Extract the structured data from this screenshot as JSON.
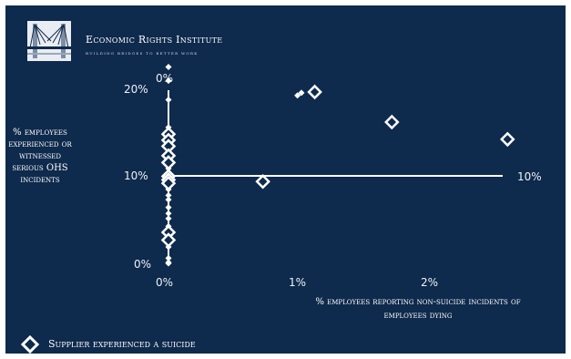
{
  "header": {
    "org_name": "Economic Rights Institute",
    "org_tagline": "Building bridges to better work",
    "logo_icon": "bridge-logo-icon"
  },
  "colors": {
    "background": "#0e2a4c",
    "foreground": "#ffffff"
  },
  "chart_data": {
    "type": "scatter",
    "xlabel": "% employees reporting non-suicide incidents of employees dying",
    "ylabel": "% employees experienced or witnessed serious OHS incidents",
    "xlim": [
      0,
      2.7
    ],
    "ylim": [
      0,
      20
    ],
    "x_ticks": [
      "0%",
      "1%",
      "2%"
    ],
    "y_ticks": [
      "0%",
      "10%",
      "20%"
    ],
    "extra_tick_labels": {
      "top": "0%",
      "right": "10%"
    },
    "grid": false,
    "legend": {
      "position": "bottom-left",
      "entries": [
        {
          "marker": "hollow-diamond",
          "label": "Supplier experienced a suicide"
        }
      ]
    },
    "series": [
      {
        "marker": "small-solid-diamond",
        "points": [
          [
            0,
            22.8
          ],
          [
            0,
            21.2
          ],
          [
            0,
            19.0
          ],
          [
            0,
            15.8
          ],
          [
            0,
            14.6
          ],
          [
            0,
            13.8
          ],
          [
            0,
            13.2
          ],
          [
            0,
            12.4
          ],
          [
            0,
            11.7
          ],
          [
            0,
            11.0
          ],
          [
            0,
            10.5
          ],
          [
            0,
            9.8
          ],
          [
            0,
            9.3
          ],
          [
            0,
            8.6
          ],
          [
            0,
            7.9
          ],
          [
            0,
            7.4
          ],
          [
            0,
            6.5
          ],
          [
            0,
            5.8
          ],
          [
            0,
            5.2
          ],
          [
            0,
            4.3
          ],
          [
            0,
            3.5
          ],
          [
            0,
            2.7
          ],
          [
            0,
            1.9
          ],
          [
            0,
            0.6
          ],
          [
            0,
            0.1
          ],
          [
            0,
            0.0
          ],
          [
            0.97,
            19.5
          ],
          [
            1.0,
            19.8
          ]
        ]
      },
      {
        "marker": "hollow-diamond",
        "points": [
          [
            0,
            15.0
          ],
          [
            0,
            14.3
          ],
          [
            0,
            13.6
          ],
          [
            0,
            12.5
          ],
          [
            0,
            11.7
          ],
          [
            0,
            10.1
          ],
          [
            0,
            9.7
          ],
          [
            0,
            9.3
          ],
          [
            0,
            3.6
          ],
          [
            0,
            2.7
          ],
          [
            0.71,
            9.5
          ],
          [
            1.1,
            19.9
          ],
          [
            1.68,
            16.4
          ],
          [
            2.55,
            14.4
          ]
        ]
      }
    ]
  }
}
